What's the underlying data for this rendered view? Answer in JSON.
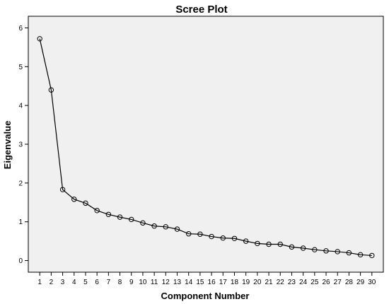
{
  "chart_data": {
    "type": "line",
    "title": "Scree Plot",
    "xlabel": "Component Number",
    "ylabel": "Eigenvalue",
    "x": [
      1,
      2,
      3,
      4,
      5,
      6,
      7,
      8,
      9,
      10,
      11,
      12,
      13,
      14,
      15,
      16,
      17,
      18,
      19,
      20,
      21,
      22,
      23,
      24,
      25,
      26,
      27,
      28,
      29,
      30
    ],
    "values": [
      5.72,
      4.4,
      1.83,
      1.58,
      1.48,
      1.29,
      1.19,
      1.12,
      1.06,
      0.97,
      0.89,
      0.87,
      0.81,
      0.69,
      0.68,
      0.62,
      0.58,
      0.57,
      0.5,
      0.44,
      0.42,
      0.42,
      0.35,
      0.32,
      0.28,
      0.25,
      0.23,
      0.2,
      0.15,
      0.13
    ],
    "y_ticks": [
      0,
      1,
      2,
      3,
      4,
      5,
      6
    ],
    "ylim": [
      -0.3,
      6.3
    ],
    "xlim": [
      0,
      31
    ],
    "marker": "open-circle",
    "grid": false,
    "legend": "none",
    "colors": {
      "plot_background": "#f0f0f0",
      "line": "#000000",
      "frame": "#000000"
    }
  }
}
